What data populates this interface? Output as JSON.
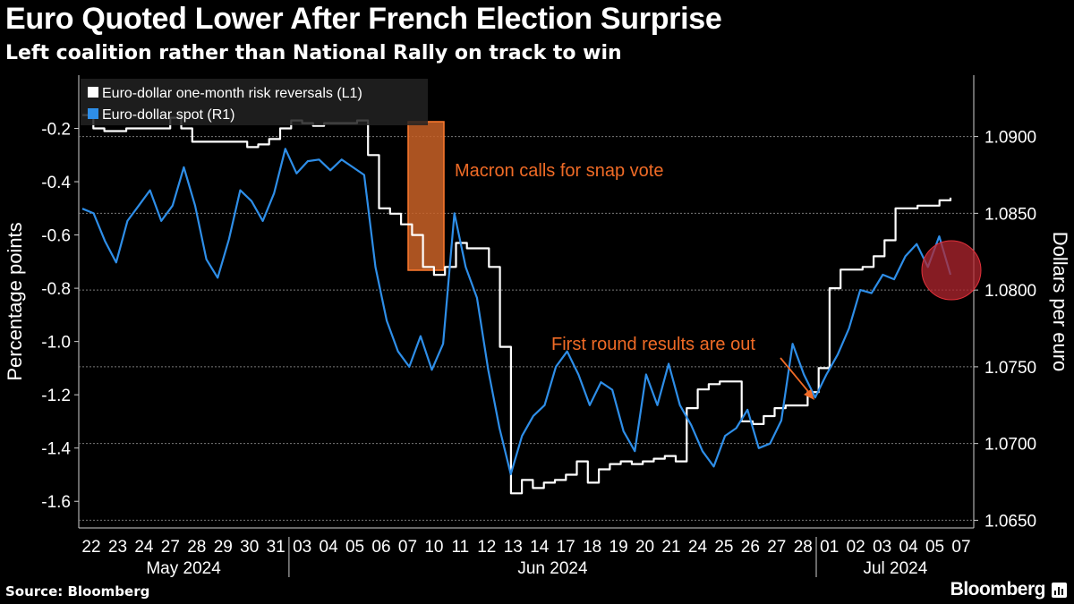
{
  "header": {
    "title": "Euro Quoted Lower After French Election Surprise",
    "subtitle": "Left coalition rather than National Rally on track to win"
  },
  "footer": {
    "source": "Source: Bloomberg",
    "brand": "Bloomberg"
  },
  "chart_data": {
    "type": "line",
    "title": "Euro Quoted Lower After French Election Surprise",
    "subtitle": "Left coalition rather than National Rally on track to win",
    "ylabel_left": "Percentage points",
    "ylabel_right": "Dollars per euro",
    "y_left": {
      "ticks": [
        -0.2,
        -0.4,
        -0.6,
        -0.8,
        -1.0,
        -1.2,
        -1.4,
        -1.6
      ],
      "tick_labels": [
        "-0.2",
        "-0.4",
        "-0.6",
        "-0.8",
        "-1.0",
        "-1.2",
        "-1.4",
        "-1.6"
      ],
      "range": [
        -1.7,
        0.0
      ]
    },
    "y_right": {
      "ticks": [
        1.09,
        1.085,
        1.08,
        1.075,
        1.07,
        1.065
      ],
      "tick_labels": [
        "1.0900",
        "1.0850",
        "1.0800",
        "1.0750",
        "1.0700",
        "1.0650"
      ],
      "range": [
        1.0645,
        1.094
      ]
    },
    "x": {
      "day_labels": [
        "22",
        "23",
        "24",
        "27",
        "28",
        "29",
        "30",
        "31",
        "03",
        "04",
        "05",
        "06",
        "07",
        "10",
        "11",
        "12",
        "13",
        "14",
        "17",
        "18",
        "19",
        "20",
        "21",
        "24",
        "25",
        "26",
        "27",
        "28",
        "01",
        "02",
        "03",
        "04",
        "05",
        "07"
      ],
      "month_labels": [
        "May 2024",
        "Jun 2024",
        "Jul 2024"
      ],
      "month_start_index": [
        0,
        8,
        28
      ]
    },
    "grid": true,
    "legend_position": "top-left",
    "legend": [
      {
        "label": "Euro-dollar one-month risk reversals (L1)",
        "color": "#ffffff"
      },
      {
        "label": "Euro-dollar spot (R1)",
        "color": "#2e8ee8"
      }
    ],
    "series": [
      {
        "name": "Euro-dollar one-month risk reversals (L1)",
        "axis": "left",
        "color": "#ffffff",
        "values": [
          -0.15,
          -0.2,
          -0.21,
          -0.21,
          -0.2,
          -0.2,
          -0.2,
          -0.2,
          -0.16,
          -0.2,
          -0.25,
          -0.25,
          -0.25,
          -0.25,
          -0.25,
          -0.27,
          -0.26,
          -0.24,
          -0.2,
          -0.17,
          -0.18,
          -0.19,
          -0.18,
          -0.18,
          -0.18,
          -0.17,
          -0.3,
          -0.5,
          -0.52,
          -0.56,
          -0.6,
          -0.72,
          -0.75,
          -0.72,
          -0.63,
          -0.65,
          -0.65,
          -0.72,
          -1.02,
          -1.57,
          -1.52,
          -1.55,
          -1.53,
          -1.52,
          -1.5,
          -1.45,
          -1.53,
          -1.48,
          -1.46,
          -1.45,
          -1.46,
          -1.45,
          -1.44,
          -1.43,
          -1.45,
          -1.25,
          -1.18,
          -1.16,
          -1.15,
          -1.15,
          -1.3,
          -1.31,
          -1.28,
          -1.25,
          -1.24,
          -1.24,
          -1.19,
          -1.1,
          -0.8,
          -0.73,
          -0.73,
          -0.72,
          -0.68,
          -0.62,
          -0.5,
          -0.5,
          -0.49,
          -0.49,
          -0.47,
          -0.46
        ]
      },
      {
        "name": "Euro-dollar spot (R1)",
        "axis": "right",
        "color": "#2e8ee8",
        "values": [
          1.0853,
          1.085,
          1.0832,
          1.0818,
          1.0845,
          1.0855,
          1.0865,
          1.0845,
          1.0855,
          1.088,
          1.0855,
          1.082,
          1.0808,
          1.0833,
          1.0865,
          1.0858,
          1.0845,
          1.0863,
          1.0892,
          1.0876,
          1.0884,
          1.0885,
          1.0878,
          1.0885,
          1.088,
          1.0875,
          1.0815,
          1.078,
          1.076,
          1.075,
          1.077,
          1.0748,
          1.0765,
          1.085,
          1.0815,
          1.0795,
          1.0748,
          1.071,
          1.068,
          1.0705,
          1.0718,
          1.0725,
          1.075,
          1.076,
          1.0745,
          1.0725,
          1.074,
          1.0735,
          1.0708,
          1.0695,
          1.0745,
          1.0725,
          1.0752,
          1.0725,
          1.0712,
          1.0695,
          1.0685,
          1.0705,
          1.071,
          1.0722,
          1.0697,
          1.07,
          1.0715,
          1.0765,
          1.0745,
          1.073,
          1.0745,
          1.0758,
          1.0775,
          1.08,
          1.0798,
          1.081,
          1.0807,
          1.0822,
          1.083,
          1.0815,
          1.0835,
          1.081
        ]
      }
    ],
    "annotations": [
      {
        "text": "Macron calls for snap vote",
        "color": "#f06b26"
      },
      {
        "text": "First round results are out",
        "color": "#f06b26"
      }
    ]
  }
}
